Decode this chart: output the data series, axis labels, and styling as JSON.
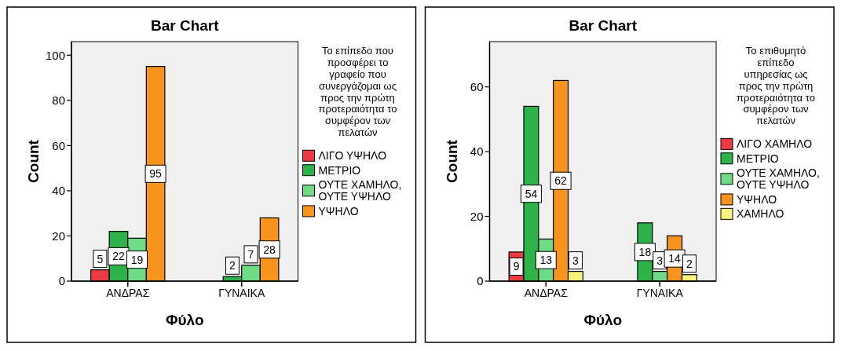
{
  "chart_data": [
    {
      "type": "bar",
      "title": "Bar Chart",
      "xlabel": "Φύλο",
      "ylabel": "Count",
      "legend_title": "Το επίπεδο που προσφέρει το γραφείο που συνεργάζομαι ως προς την πρώτη προτεραιότητα το συμφέρον των πελατών",
      "legend": "right",
      "data_labels": true,
      "categories": [
        "ΑΝΔΡΑΣ",
        "ΓΥΝΑΙΚΑ"
      ],
      "ylim": [
        0,
        106
      ],
      "yticks": [
        0,
        20,
        40,
        60,
        80,
        100
      ],
      "series": [
        {
          "name": "ΛΙΓΟ ΥΨΗΛΟ",
          "color": "#ee3a43",
          "values": [
            5,
            null
          ]
        },
        {
          "name": "ΜΕΤΡΙΟ",
          "color": "#2db34a",
          "values": [
            22,
            2
          ]
        },
        {
          "name": "ΟΥΤΕ ΧΑΜΗΛΟ, ΟΥΤΕ ΥΨΗΛΟ",
          "color": "#6fdc85",
          "values": [
            19,
            7
          ]
        },
        {
          "name": "ΥΨΗΛΟ",
          "color": "#f7941d",
          "values": [
            95,
            28
          ]
        }
      ]
    },
    {
      "type": "bar",
      "title": "Bar Chart",
      "xlabel": "Φύλο",
      "ylabel": "Count",
      "legend_title": "Το επιθυμητό επίπεδο υπηρεσίας ως προς την πρώτη προτεραιότητα το συμφέρον των πελατών",
      "legend": "right",
      "data_labels": true,
      "categories": [
        "ΑΝΔΡΑΣ",
        "ΓΥΝΑΙΚΑ"
      ],
      "ylim": [
        0,
        74
      ],
      "yticks": [
        0,
        20,
        40,
        60
      ],
      "series": [
        {
          "name": "ΛΙΓΟ ΧΑΜΗΛΟ",
          "color": "#ee3a43",
          "values": [
            9,
            null
          ]
        },
        {
          "name": "ΜΕΤΡΙΟ",
          "color": "#2db34a",
          "values": [
            54,
            18
          ]
        },
        {
          "name": "ΟΥΤΕ ΧΑΜΗΛΟ, ΟΥΤΕ ΥΨΗΛΟ",
          "color": "#6fdc85",
          "values": [
            13,
            3
          ]
        },
        {
          "name": "ΥΨΗΛΟ",
          "color": "#f7941d",
          "values": [
            62,
            14
          ]
        },
        {
          "name": "ΧΑΜΗΛΟ",
          "color": "#f9f57a",
          "values": [
            3,
            2
          ]
        }
      ]
    }
  ]
}
